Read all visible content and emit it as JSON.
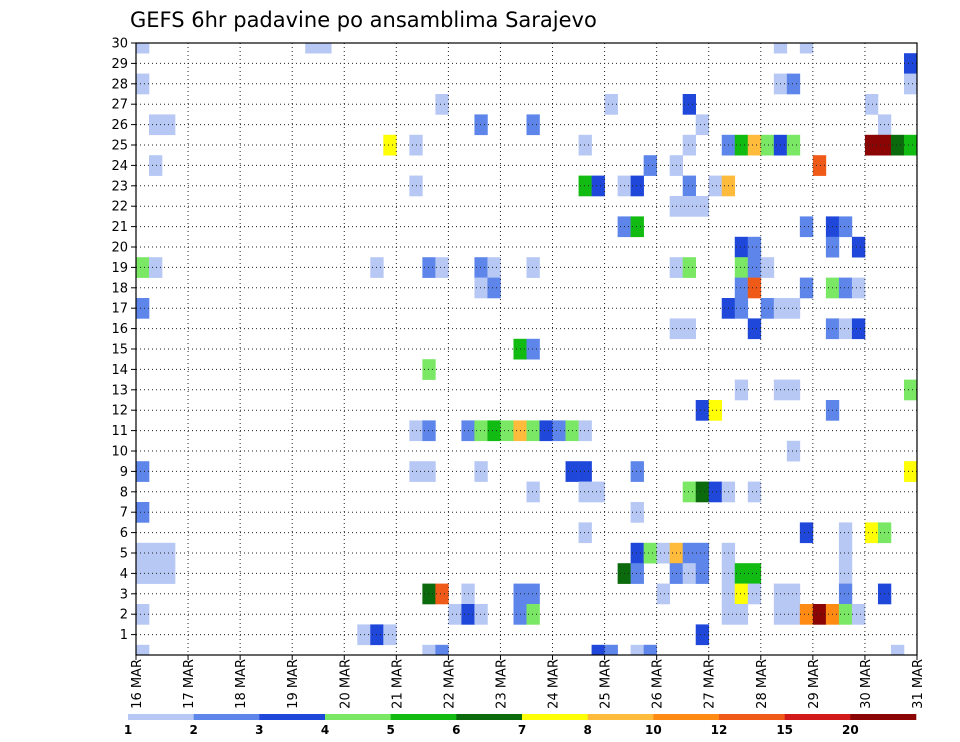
{
  "chart_data": {
    "type": "heatmap",
    "title": "GEFS 6hr padavine po ansamblima Sarajevo",
    "xlabel": "",
    "ylabel": "",
    "y_ticks": [
      "1",
      "2",
      "3",
      "4",
      "5",
      "6",
      "7",
      "8",
      "9",
      "10",
      "11",
      "12",
      "13",
      "14",
      "15",
      "16",
      "17",
      "18",
      "19",
      "20",
      "21",
      "22",
      "23",
      "24",
      "25",
      "26",
      "27",
      "28",
      "29",
      "30"
    ],
    "x_ticks": [
      "16 MAR",
      "17 MAR",
      "18 MAR",
      "19 MAR",
      "20 MAR",
      "21 MAR",
      "22 MAR",
      "23 MAR",
      "24 MAR",
      "25 MAR",
      "26 MAR",
      "27 MAR",
      "28 MAR",
      "29 MAR",
      "30 MAR",
      "31 MAR"
    ],
    "x_range_steps": [
      0,
      60
    ],
    "y_range_members": [
      0,
      30
    ],
    "grid": true,
    "colorbar_position": "bottom",
    "colorbar_levels": [
      "1",
      "2",
      "3",
      "4",
      "5",
      "6",
      "7",
      "8",
      "10",
      "12",
      "15",
      "20"
    ],
    "colorbar_colors": [
      "#b7c8f4",
      "#5e86ea",
      "#1f48db",
      "#7ae865",
      "#12bb12",
      "#0b6a0b",
      "#ffff05",
      "#ffbb3c",
      "#ff8b15",
      "#f05a18",
      "#d21a1a",
      "#8c0505"
    ],
    "cells": [
      {
        "x": 0,
        "y": 30,
        "c": 0
      },
      {
        "x": 13,
        "y": 30,
        "c": 0
      },
      {
        "x": 14,
        "y": 30,
        "c": 0
      },
      {
        "x": 49,
        "y": 30,
        "c": 0
      },
      {
        "x": 51,
        "y": 30,
        "c": 0
      },
      {
        "x": 59,
        "y": 29,
        "c": 2
      },
      {
        "x": 0,
        "y": 28,
        "c": 0
      },
      {
        "x": 49,
        "y": 28,
        "c": 0
      },
      {
        "x": 50,
        "y": 28,
        "c": 1
      },
      {
        "x": 59,
        "y": 28,
        "c": 0
      },
      {
        "x": 23,
        "y": 27,
        "c": 0
      },
      {
        "x": 36,
        "y": 27,
        "c": 0
      },
      {
        "x": 42,
        "y": 27,
        "c": 2
      },
      {
        "x": 56,
        "y": 27,
        "c": 0
      },
      {
        "x": 1,
        "y": 26,
        "c": 0
      },
      {
        "x": 2,
        "y": 26,
        "c": 0
      },
      {
        "x": 26,
        "y": 26,
        "c": 1
      },
      {
        "x": 30,
        "y": 26,
        "c": 1
      },
      {
        "x": 43,
        "y": 26,
        "c": 0
      },
      {
        "x": 57,
        "y": 26,
        "c": 0
      },
      {
        "x": 19,
        "y": 25,
        "c": 6
      },
      {
        "x": 21,
        "y": 25,
        "c": 0
      },
      {
        "x": 34,
        "y": 25,
        "c": 0
      },
      {
        "x": 42,
        "y": 25,
        "c": 0
      },
      {
        "x": 45,
        "y": 25,
        "c": 1
      },
      {
        "x": 46,
        "y": 25,
        "c": 4
      },
      {
        "x": 47,
        "y": 25,
        "c": 7
      },
      {
        "x": 48,
        "y": 25,
        "c": 3
      },
      {
        "x": 49,
        "y": 25,
        "c": 2
      },
      {
        "x": 50,
        "y": 25,
        "c": 3
      },
      {
        "x": 56,
        "y": 25,
        "c": 11
      },
      {
        "x": 57,
        "y": 25,
        "c": 11
      },
      {
        "x": 58,
        "y": 25,
        "c": 5
      },
      {
        "x": 59,
        "y": 25,
        "c": 4
      },
      {
        "x": 1,
        "y": 24,
        "c": 0
      },
      {
        "x": 39,
        "y": 24,
        "c": 1
      },
      {
        "x": 41,
        "y": 24,
        "c": 0
      },
      {
        "x": 52,
        "y": 24,
        "c": 9
      },
      {
        "x": 21,
        "y": 23,
        "c": 0
      },
      {
        "x": 34,
        "y": 23,
        "c": 4
      },
      {
        "x": 35,
        "y": 23,
        "c": 2
      },
      {
        "x": 37,
        "y": 23,
        "c": 0
      },
      {
        "x": 38,
        "y": 23,
        "c": 2
      },
      {
        "x": 42,
        "y": 23,
        "c": 1
      },
      {
        "x": 44,
        "y": 23,
        "c": 0
      },
      {
        "x": 45,
        "y": 23,
        "c": 7
      },
      {
        "x": 41,
        "y": 22,
        "c": 0
      },
      {
        "x": 42,
        "y": 22,
        "c": 0
      },
      {
        "x": 43,
        "y": 22,
        "c": 0
      },
      {
        "x": 37,
        "y": 21,
        "c": 1
      },
      {
        "x": 38,
        "y": 21,
        "c": 4
      },
      {
        "x": 51,
        "y": 21,
        "c": 1
      },
      {
        "x": 53,
        "y": 21,
        "c": 2
      },
      {
        "x": 54,
        "y": 21,
        "c": 1
      },
      {
        "x": 46,
        "y": 20,
        "c": 2
      },
      {
        "x": 47,
        "y": 20,
        "c": 1
      },
      {
        "x": 53,
        "y": 20,
        "c": 1
      },
      {
        "x": 55,
        "y": 20,
        "c": 2
      },
      {
        "x": 0,
        "y": 19,
        "c": 3
      },
      {
        "x": 1,
        "y": 19,
        "c": 0
      },
      {
        "x": 18,
        "y": 19,
        "c": 0
      },
      {
        "x": 22,
        "y": 19,
        "c": 1
      },
      {
        "x": 23,
        "y": 19,
        "c": 0
      },
      {
        "x": 26,
        "y": 19,
        "c": 1
      },
      {
        "x": 27,
        "y": 19,
        "c": 0
      },
      {
        "x": 30,
        "y": 19,
        "c": 0
      },
      {
        "x": 41,
        "y": 19,
        "c": 0
      },
      {
        "x": 42,
        "y": 19,
        "c": 3
      },
      {
        "x": 46,
        "y": 19,
        "c": 3
      },
      {
        "x": 47,
        "y": 19,
        "c": 1
      },
      {
        "x": 48,
        "y": 19,
        "c": 0
      },
      {
        "x": 26,
        "y": 18,
        "c": 0
      },
      {
        "x": 27,
        "y": 18,
        "c": 1
      },
      {
        "x": 46,
        "y": 18,
        "c": 1
      },
      {
        "x": 47,
        "y": 18,
        "c": 9
      },
      {
        "x": 51,
        "y": 18,
        "c": 1
      },
      {
        "x": 53,
        "y": 18,
        "c": 3
      },
      {
        "x": 54,
        "y": 18,
        "c": 1
      },
      {
        "x": 55,
        "y": 18,
        "c": 0
      },
      {
        "x": 0,
        "y": 17,
        "c": 1
      },
      {
        "x": 45,
        "y": 17,
        "c": 2
      },
      {
        "x": 46,
        "y": 17,
        "c": 1
      },
      {
        "x": 48,
        "y": 17,
        "c": 1
      },
      {
        "x": 49,
        "y": 17,
        "c": 0
      },
      {
        "x": 50,
        "y": 17,
        "c": 0
      },
      {
        "x": 41,
        "y": 16,
        "c": 0
      },
      {
        "x": 42,
        "y": 16,
        "c": 0
      },
      {
        "x": 47,
        "y": 16,
        "c": 2
      },
      {
        "x": 53,
        "y": 16,
        "c": 1
      },
      {
        "x": 54,
        "y": 16,
        "c": 0
      },
      {
        "x": 55,
        "y": 16,
        "c": 2
      },
      {
        "x": 29,
        "y": 15,
        "c": 4
      },
      {
        "x": 30,
        "y": 15,
        "c": 1
      },
      {
        "x": 22,
        "y": 14,
        "c": 3
      },
      {
        "x": 46,
        "y": 13,
        "c": 0
      },
      {
        "x": 49,
        "y": 13,
        "c": 0
      },
      {
        "x": 50,
        "y": 13,
        "c": 0
      },
      {
        "x": 59,
        "y": 13,
        "c": 3
      },
      {
        "x": 43,
        "y": 12,
        "c": 2
      },
      {
        "x": 44,
        "y": 12,
        "c": 6
      },
      {
        "x": 53,
        "y": 12,
        "c": 1
      },
      {
        "x": 21,
        "y": 11,
        "c": 0
      },
      {
        "x": 22,
        "y": 11,
        "c": 1
      },
      {
        "x": 25,
        "y": 11,
        "c": 1
      },
      {
        "x": 26,
        "y": 11,
        "c": 3
      },
      {
        "x": 27,
        "y": 11,
        "c": 4
      },
      {
        "x": 28,
        "y": 11,
        "c": 3
      },
      {
        "x": 29,
        "y": 11,
        "c": 7
      },
      {
        "x": 30,
        "y": 11,
        "c": 3
      },
      {
        "x": 31,
        "y": 11,
        "c": 2
      },
      {
        "x": 32,
        "y": 11,
        "c": 1
      },
      {
        "x": 33,
        "y": 11,
        "c": 3
      },
      {
        "x": 34,
        "y": 11,
        "c": 0
      },
      {
        "x": 50,
        "y": 10,
        "c": 0
      },
      {
        "x": 0,
        "y": 9,
        "c": 1
      },
      {
        "x": 21,
        "y": 9,
        "c": 0
      },
      {
        "x": 22,
        "y": 9,
        "c": 0
      },
      {
        "x": 26,
        "y": 9,
        "c": 0
      },
      {
        "x": 33,
        "y": 9,
        "c": 2
      },
      {
        "x": 34,
        "y": 9,
        "c": 2
      },
      {
        "x": 38,
        "y": 9,
        "c": 1
      },
      {
        "x": 59,
        "y": 9,
        "c": 6
      },
      {
        "x": 30,
        "y": 8,
        "c": 0
      },
      {
        "x": 34,
        "y": 8,
        "c": 0
      },
      {
        "x": 35,
        "y": 8,
        "c": 0
      },
      {
        "x": 42,
        "y": 8,
        "c": 3
      },
      {
        "x": 43,
        "y": 8,
        "c": 5
      },
      {
        "x": 44,
        "y": 8,
        "c": 2
      },
      {
        "x": 45,
        "y": 8,
        "c": 0
      },
      {
        "x": 47,
        "y": 8,
        "c": 0
      },
      {
        "x": 0,
        "y": 7,
        "c": 1
      },
      {
        "x": 38,
        "y": 7,
        "c": 0
      },
      {
        "x": 34,
        "y": 6,
        "c": 0
      },
      {
        "x": 51,
        "y": 6,
        "c": 2
      },
      {
        "x": 54,
        "y": 6,
        "c": 0
      },
      {
        "x": 56,
        "y": 6,
        "c": 6
      },
      {
        "x": 57,
        "y": 6,
        "c": 3
      },
      {
        "x": 0,
        "y": 5,
        "c": 0
      },
      {
        "x": 1,
        "y": 5,
        "c": 0
      },
      {
        "x": 2,
        "y": 5,
        "c": 0
      },
      {
        "x": 38,
        "y": 5,
        "c": 2
      },
      {
        "x": 39,
        "y": 5,
        "c": 3
      },
      {
        "x": 40,
        "y": 5,
        "c": 0
      },
      {
        "x": 41,
        "y": 5,
        "c": 7
      },
      {
        "x": 42,
        "y": 5,
        "c": 1
      },
      {
        "x": 43,
        "y": 5,
        "c": 1
      },
      {
        "x": 45,
        "y": 5,
        "c": 0
      },
      {
        "x": 54,
        "y": 5,
        "c": 0
      },
      {
        "x": 0,
        "y": 4,
        "c": 0
      },
      {
        "x": 1,
        "y": 4,
        "c": 0
      },
      {
        "x": 2,
        "y": 4,
        "c": 0
      },
      {
        "x": 37,
        "y": 4,
        "c": 5
      },
      {
        "x": 38,
        "y": 4,
        "c": 1
      },
      {
        "x": 41,
        "y": 4,
        "c": 1
      },
      {
        "x": 42,
        "y": 4,
        "c": 0
      },
      {
        "x": 43,
        "y": 4,
        "c": 1
      },
      {
        "x": 45,
        "y": 4,
        "c": 0
      },
      {
        "x": 46,
        "y": 4,
        "c": 4
      },
      {
        "x": 47,
        "y": 4,
        "c": 4
      },
      {
        "x": 54,
        "y": 4,
        "c": 0
      },
      {
        "x": 22,
        "y": 3,
        "c": 5
      },
      {
        "x": 23,
        "y": 3,
        "c": 9
      },
      {
        "x": 25,
        "y": 3,
        "c": 0
      },
      {
        "x": 29,
        "y": 3,
        "c": 1
      },
      {
        "x": 30,
        "y": 3,
        "c": 1
      },
      {
        "x": 40,
        "y": 3,
        "c": 0
      },
      {
        "x": 45,
        "y": 3,
        "c": 0
      },
      {
        "x": 46,
        "y": 3,
        "c": 6
      },
      {
        "x": 47,
        "y": 3,
        "c": 0
      },
      {
        "x": 49,
        "y": 3,
        "c": 0
      },
      {
        "x": 50,
        "y": 3,
        "c": 0
      },
      {
        "x": 54,
        "y": 3,
        "c": 1
      },
      {
        "x": 57,
        "y": 3,
        "c": 2
      },
      {
        "x": 0,
        "y": 2,
        "c": 0
      },
      {
        "x": 24,
        "y": 2,
        "c": 0
      },
      {
        "x": 25,
        "y": 2,
        "c": 2
      },
      {
        "x": 26,
        "y": 2,
        "c": 0
      },
      {
        "x": 29,
        "y": 2,
        "c": 1
      },
      {
        "x": 30,
        "y": 2,
        "c": 3
      },
      {
        "x": 45,
        "y": 2,
        "c": 0
      },
      {
        "x": 46,
        "y": 2,
        "c": 0
      },
      {
        "x": 49,
        "y": 2,
        "c": 0
      },
      {
        "x": 50,
        "y": 2,
        "c": 0
      },
      {
        "x": 51,
        "y": 2,
        "c": 8
      },
      {
        "x": 52,
        "y": 2,
        "c": 11
      },
      {
        "x": 53,
        "y": 2,
        "c": 8
      },
      {
        "x": 54,
        "y": 2,
        "c": 3
      },
      {
        "x": 55,
        "y": 2,
        "c": 0
      },
      {
        "x": 17,
        "y": 1,
        "c": 0
      },
      {
        "x": 18,
        "y": 1,
        "c": 2
      },
      {
        "x": 19,
        "y": 1,
        "c": 0
      },
      {
        "x": 43,
        "y": 1,
        "c": 2
      },
      {
        "x": 0,
        "y": 0,
        "c": 0
      },
      {
        "x": 22,
        "y": 0,
        "c": 0
      },
      {
        "x": 23,
        "y": 0,
        "c": 1
      },
      {
        "x": 35,
        "y": 0,
        "c": 2
      },
      {
        "x": 36,
        "y": 0,
        "c": 1
      },
      {
        "x": 38,
        "y": 0,
        "c": 0
      },
      {
        "x": 39,
        "y": 0,
        "c": 1
      },
      {
        "x": 58,
        "y": 0,
        "c": 0
      }
    ]
  }
}
